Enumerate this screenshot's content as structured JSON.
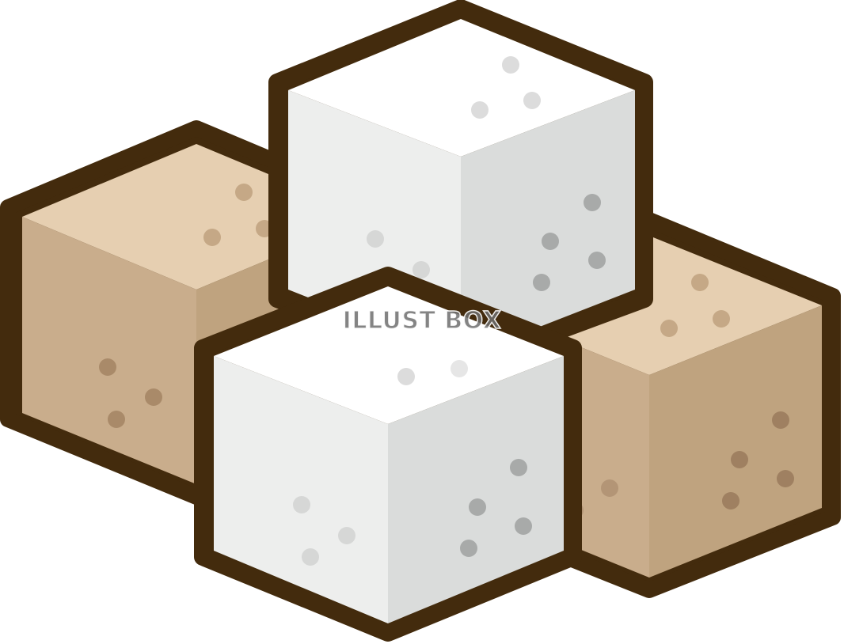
{
  "watermark": {
    "text": "ILLUST BOX"
  },
  "colors": {
    "outline": "#432b0d",
    "white_top": "#ffffff",
    "white_left": "#edeeed",
    "white_right": "#dadcdb",
    "white_speck_light": "#d4d5d4",
    "white_speck_dark": "#a8aaa9",
    "brown_top": "#e6cfb1",
    "brown_left": "#c9ad8c",
    "brown_right": "#bfa37f",
    "brown_speck_top": "#c5a886",
    "brown_speck_side": "#9f8061"
  }
}
